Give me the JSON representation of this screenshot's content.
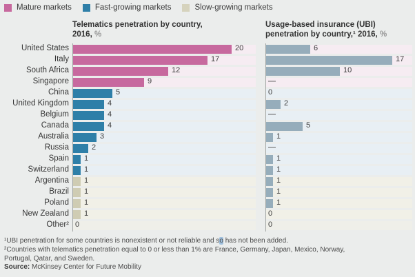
{
  "page": {
    "background": "#ebedec"
  },
  "legend": {
    "items": [
      {
        "label": "Mature markets",
        "color": "#c7699e",
        "key": "mature"
      },
      {
        "label": "Fast-growing markets",
        "color": "#2e7fa8",
        "key": "fast"
      },
      {
        "label": "Slow-growing markets",
        "color": "#d6d3bd",
        "key": "slow"
      }
    ]
  },
  "charts": {
    "left": {
      "line1": "Telematics penetration by country,",
      "line2": "2016,",
      "unit": "%"
    },
    "right": {
      "line1": "Usage-based insurance (UBI)",
      "line2": "penetration by country,¹ 2016,",
      "unit": "%"
    }
  },
  "chart_data": {
    "type": "bar",
    "orientation": "horizontal",
    "categories": [
      "United States",
      "Italy",
      "South Africa",
      "Singapore",
      "China",
      "United Kingdom",
      "Belgium",
      "Canada",
      "Australia",
      "Russia",
      "Spain",
      "Switzerland",
      "Argentina",
      "Brazil",
      "Poland",
      "New Zealand",
      "Other²"
    ],
    "market_types": [
      "mature",
      "mature",
      "mature",
      "mature",
      "fast",
      "fast",
      "fast",
      "fast",
      "fast",
      "fast",
      "fast",
      "fast",
      "slow",
      "slow",
      "slow",
      "slow",
      "other"
    ],
    "series": [
      {
        "name": "Telematics penetration by country, 2016, %",
        "values": [
          20,
          17,
          12,
          9,
          5,
          4,
          4,
          4,
          3,
          2,
          1,
          1,
          1,
          1,
          1,
          1,
          0
        ],
        "display": [
          "20",
          "17",
          "12",
          "9",
          "5",
          "4",
          "4",
          "4",
          "3",
          "2",
          "1",
          "1",
          "1",
          "1",
          "1",
          "1",
          "0"
        ],
        "axis_max": 20,
        "color_by_market": true
      },
      {
        "name": "Usage-based insurance (UBI) penetration by country, 2016, %",
        "values": [
          6,
          17,
          10,
          null,
          0,
          2,
          null,
          5,
          1,
          null,
          1,
          1,
          1,
          1,
          1,
          0,
          0
        ],
        "display": [
          "6",
          "17",
          "10",
          "—",
          "0",
          "2",
          "—",
          "5",
          "1",
          "—",
          "1",
          "1",
          "1",
          "1",
          "1",
          "0",
          "0"
        ],
        "axis_max": 17,
        "color": "#96adbb"
      }
    ],
    "missing_marker": "—",
    "bar_colors": {
      "mature": "#c7699e",
      "fast": "#2e7fa8",
      "slow": "#cfccb3"
    },
    "track_colors": {
      "mature": "#f6ecf2",
      "fast": "#e8eff4",
      "slow": "#f1f0e7",
      "other": "#efefe9"
    },
    "grid": false,
    "legend_position": "top"
  },
  "footnotes": {
    "line1_pre": "¹UBI penetration for some countries is nonexistent or not reliable and s",
    "line1_highlight": "o",
    "line1_post": " has not been added.",
    "line2": "²Countries with telematics penetration equal to 0 or less than 1% are France, Germany, Japan, Mexico, Norway,",
    "line3": "Portugal, Qatar, and Sweden.",
    "source_label": "Source:",
    "source_text": " McKinsey Center for Future Mobility"
  }
}
